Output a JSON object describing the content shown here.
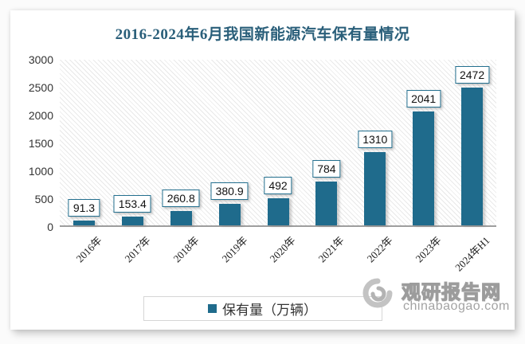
{
  "chart_data": {
    "type": "bar",
    "title": "2016-2024年6月我国新能源汽车保有量情况",
    "categories": [
      "2016年",
      "2017年",
      "2018年",
      "2019年",
      "2020年",
      "2021年",
      "2022年",
      "2023年",
      "2024年H1"
    ],
    "values": [
      91.3,
      153.4,
      260.8,
      380.9,
      492,
      784,
      1310,
      2041,
      2472
    ],
    "value_labels": [
      "91.3",
      "153.4",
      "260.8",
      "380.9",
      "492",
      "784",
      "1310",
      "2041",
      "2472"
    ],
    "ylabel": "",
    "ylim": [
      0,
      3000
    ],
    "ytick_step": 500,
    "ytick_labels": [
      "0",
      "500",
      "1000",
      "1500",
      "2000",
      "2500",
      "3000"
    ],
    "grid": false,
    "legend": [
      "保有量（万辆）"
    ],
    "legend_position": "bottom",
    "bar_color": "#1F6B8C"
  },
  "legend": {
    "label": "保有量（万辆）",
    "swatch_icon": "legend-color-square"
  },
  "watermark": {
    "logo_icon": "swirl-brand-logo",
    "site_name": "观研报告网",
    "site_url": "chinabaogao.com"
  },
  "colors": {
    "bar": "#1F6B8C",
    "title_text": "#2A5F7A",
    "axis_line": "#9E9E9E",
    "hatch_line": "#E9E9E9",
    "value_box_border": "#24708F",
    "legend_border": "#D6D6D6",
    "watermark_gray": "#A3A3A3"
  }
}
